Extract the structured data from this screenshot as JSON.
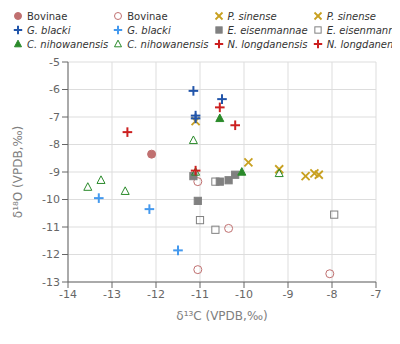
{
  "chart_data": {
    "type": "scatter",
    "xlabel": "δ¹³C (VPDB,‰)",
    "ylabel": "δ¹⁸O (VPDB,‰)",
    "xlim": [
      -14,
      -7
    ],
    "ylim": [
      -13,
      -5
    ],
    "xticks": [
      -14,
      -13,
      -12,
      -11,
      -10,
      -9,
      -8,
      -7
    ],
    "yticks": [
      -13,
      -12,
      -11,
      -10,
      -9,
      -8,
      -7,
      -6,
      -5
    ],
    "grid": true,
    "legend": "top",
    "series": [
      {
        "name": "Bovinae",
        "color": "#c07070",
        "marker": "circle",
        "x": [
          -12.1
        ],
        "y": [
          -8.35
        ]
      },
      {
        "name": "Bovinae",
        "color": "#c07070",
        "marker": "circle_open",
        "x": [
          -11.05,
          -11.05,
          -10.35,
          -8.05
        ],
        "y": [
          -9.35,
          -12.55,
          -11.05,
          -12.7
        ]
      },
      {
        "name": "P. sinense",
        "color": "#c8a020",
        "marker": "x",
        "x": [
          -11.1
        ],
        "y": [
          -7.15
        ]
      },
      {
        "name": "P. sinense",
        "color": "#c8a020",
        "marker": "x",
        "x": [
          -9.9,
          -9.2,
          -8.6,
          -8.4,
          -8.3
        ],
        "y": [
          -8.65,
          -8.9,
          -9.15,
          -9.05,
          -9.1
        ]
      },
      {
        "name": "G. blacki",
        "color": "#2255aa",
        "marker": "plus",
        "x": [
          -11.15,
          -11.1,
          -11.1,
          -10.5
        ],
        "y": [
          -6.05,
          -7.05,
          -6.95,
          -6.35
        ]
      },
      {
        "name": "G. blacki",
        "color": "#4499ee",
        "marker": "plus",
        "x": [
          -13.3,
          -12.15,
          -11.5
        ],
        "y": [
          -9.95,
          -10.35,
          -11.85
        ]
      },
      {
        "name": "E. eisenmannae",
        "color": "#808080",
        "marker": "square",
        "x": [
          -11.15,
          -11.05,
          -10.55,
          -10.35,
          -10.2
        ],
        "y": [
          -9.15,
          -10.05,
          -9.35,
          -9.3,
          -9.1
        ]
      },
      {
        "name": "E. eisenmannae",
        "color": "#808080",
        "marker": "square_open",
        "x": [
          -11.0,
          -10.65,
          -10.65,
          -7.95
        ],
        "y": [
          -10.75,
          -11.1,
          -9.35,
          -10.55
        ]
      },
      {
        "name": "C. nihowanensis",
        "color": "#2a8a2a",
        "marker": "triangle",
        "x": [
          -10.55,
          -10.05
        ],
        "y": [
          -7.05,
          -9.0
        ]
      },
      {
        "name": "C. nihowanensis",
        "color": "#2a8a2a",
        "marker": "triangle_open",
        "x": [
          -13.55,
          -13.25,
          -12.7,
          -11.15,
          -11.1,
          -9.2
        ],
        "y": [
          -9.55,
          -9.3,
          -9.7,
          -7.85,
          -9.0,
          -9.05
        ]
      },
      {
        "name": "N. longdanensis",
        "color": "#cc2020",
        "marker": "plus",
        "x": [
          -10.55,
          -10.2
        ],
        "y": [
          -6.65,
          -7.3
        ]
      },
      {
        "name": "N. longdanensis",
        "color": "#cc2020",
        "marker": "plus",
        "x": [
          -12.65,
          -11.1
        ],
        "y": [
          -7.55,
          -8.95
        ]
      }
    ]
  }
}
